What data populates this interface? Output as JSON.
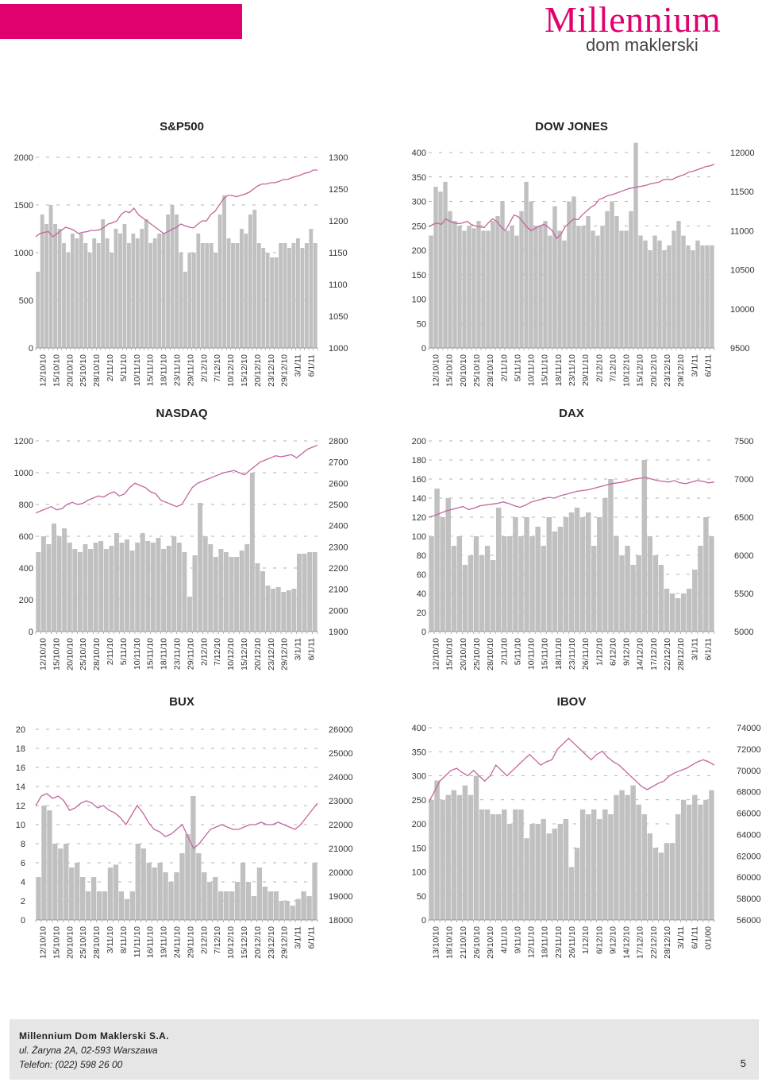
{
  "header": {
    "logo_word": "Millennium",
    "logo_sub": "dom maklerski"
  },
  "colors": {
    "brand": "#e0006e",
    "bar": "#c0c0c0",
    "line": "#c4649a"
  },
  "footer": {
    "company": "Millennium Dom Maklerski S.A.",
    "address": "ul. Żaryna 2A, 02-593 Warszawa",
    "phone": "Telefon: (022) 598 26 00",
    "page": "5"
  },
  "chart_data": [
    {
      "title": "S&P500",
      "type": "bar+line",
      "left_ticks": [
        "0",
        "500",
        "1000",
        "1500",
        "2000"
      ],
      "left_lim": [
        0,
        2000
      ],
      "right_ticks": [
        "1000",
        "1050",
        "1100",
        "1150",
        "1200",
        "1250",
        "1300"
      ],
      "right_lim": [
        1000,
        1300
      ],
      "categories": [
        "12/10/10",
        "15/10/10",
        "20/10/10",
        "25/10/10",
        "28/10/10",
        "2/11/10",
        "5/11/10",
        "10/11/10",
        "15/11/10",
        "18/11/10",
        "23/11/10",
        "29/11/10",
        "2/12/10",
        "7/12/10",
        "10/12/10",
        "15/12/10",
        "20/12/10",
        "23/12/10",
        "29/12/10",
        "3/1/11",
        "6/1/11"
      ],
      "volume": [
        800,
        1400,
        1300,
        1500,
        1300,
        1250,
        1100,
        1000,
        1200,
        1150,
        1200,
        1100,
        1000,
        1150,
        1100,
        1350,
        1150,
        1000,
        1250,
        1200,
        1300,
        1100,
        1200,
        1150,
        1250,
        1350,
        1100,
        1150,
        1200,
        1200,
        1400,
        1500,
        1400,
        1000,
        800,
        1000,
        1000,
        1200,
        1100,
        1100,
        1100,
        1000,
        1400,
        1600,
        1150,
        1100,
        1100,
        1250,
        1200,
        1400,
        1450,
        1100,
        1050,
        1000,
        950,
        950,
        1100,
        1100,
        1050,
        1100,
        1150,
        1050,
        1100,
        1250,
        1100
      ],
      "index": [
        1175,
        1180,
        1182,
        1183,
        1175,
        1180,
        1185,
        1190,
        1188,
        1185,
        1180,
        1182,
        1183,
        1185,
        1185,
        1186,
        1190,
        1195,
        1197,
        1200,
        1210,
        1215,
        1213,
        1220,
        1210,
        1205,
        1200,
        1195,
        1190,
        1185,
        1180,
        1183,
        1187,
        1190,
        1195,
        1192,
        1190,
        1189,
        1195,
        1200,
        1200,
        1210,
        1215,
        1225,
        1235,
        1240,
        1240,
        1238,
        1240,
        1242,
        1245,
        1250,
        1255,
        1258,
        1258,
        1260,
        1260,
        1262,
        1265,
        1265,
        1268,
        1270,
        1272,
        1275,
        1276,
        1280,
        1280
      ]
    },
    {
      "title": "DOW JONES",
      "type": "bar+line",
      "left_ticks": [
        "0",
        "50",
        "100",
        "150",
        "200",
        "250",
        "300",
        "350",
        "400"
      ],
      "left_lim": [
        0,
        400
      ],
      "right_ticks": [
        "9500",
        "10000",
        "10500",
        "11000",
        "11500",
        "12000"
      ],
      "right_lim": [
        9500,
        12000
      ],
      "categories": [
        "12/10/10",
        "15/10/10",
        "20/10/10",
        "25/10/10",
        "28/10/10",
        "2/11/10",
        "5/11/10",
        "10/11/10",
        "15/11/10",
        "18/11/10",
        "23/11/10",
        "29/11/10",
        "2/12/10",
        "7/12/10",
        "10/12/10",
        "15/12/10",
        "20/12/10",
        "23/12/10",
        "29/12/10",
        "3/1/11",
        "6/1/11"
      ],
      "volume": [
        230,
        330,
        320,
        340,
        280,
        260,
        250,
        240,
        250,
        245,
        260,
        240,
        240,
        260,
        270,
        300,
        240,
        250,
        230,
        280,
        340,
        300,
        250,
        250,
        260,
        230,
        290,
        240,
        220,
        300,
        310,
        250,
        250,
        270,
        240,
        230,
        250,
        280,
        300,
        270,
        240,
        240,
        280,
        420,
        230,
        220,
        200,
        230,
        220,
        200,
        210,
        240,
        260,
        230,
        210,
        200,
        220,
        210,
        210,
        210
      ],
      "index": [
        11050,
        11080,
        11100,
        11080,
        11150,
        11120,
        11100,
        11090,
        11100,
        11120,
        11080,
        11060,
        11050,
        11040,
        11100,
        11150,
        11120,
        11050,
        11000,
        11100,
        11200,
        11180,
        11120,
        11050,
        11000,
        11030,
        11060,
        11080,
        11050,
        11000,
        10900,
        10950,
        11050,
        11100,
        11150,
        11140,
        11200,
        11250,
        11300,
        11330,
        11400,
        11420,
        11450,
        11460,
        11480,
        11500,
        11520,
        11540,
        11550,
        11560,
        11570,
        11580,
        11600,
        11610,
        11620,
        11650,
        11660,
        11650,
        11680,
        11700,
        11720,
        11750,
        11760,
        11780,
        11800,
        11820,
        11830,
        11850
      ]
    },
    {
      "title": "NASDAQ",
      "type": "bar+line",
      "left_ticks": [
        "0",
        "200",
        "400",
        "600",
        "800",
        "1000",
        "1200"
      ],
      "left_lim": [
        0,
        1200
      ],
      "right_ticks": [
        "1900",
        "2000",
        "2100",
        "2200",
        "2300",
        "2400",
        "2500",
        "2600",
        "2700",
        "2800"
      ],
      "right_lim": [
        1900,
        2800
      ],
      "categories": [
        "12/10/10",
        "15/10/10",
        "20/10/10",
        "25/10/10",
        "28/10/10",
        "2/11/10",
        "5/11/10",
        "10/11/10",
        "15/11/10",
        "18/11/10",
        "23/11/10",
        "29/11/10",
        "2/12/10",
        "7/12/10",
        "10/12/10",
        "15/12/10",
        "20/12/10",
        "23/12/10",
        "29/12/10",
        "3/1/11",
        "6/1/11"
      ],
      "volume": [
        500,
        600,
        550,
        680,
        600,
        650,
        560,
        520,
        500,
        550,
        520,
        560,
        570,
        520,
        540,
        620,
        560,
        580,
        510,
        560,
        620,
        570,
        560,
        590,
        520,
        540,
        600,
        560,
        500,
        220,
        480,
        810,
        600,
        550,
        470,
        520,
        500,
        470,
        470,
        510,
        550,
        1000,
        430,
        380,
        290,
        270,
        280,
        250,
        260,
        270,
        490,
        490,
        500,
        500
      ],
      "index": [
        2460,
        2470,
        2480,
        2490,
        2475,
        2480,
        2500,
        2510,
        2500,
        2505,
        2520,
        2530,
        2540,
        2535,
        2550,
        2560,
        2540,
        2550,
        2580,
        2600,
        2590,
        2580,
        2560,
        2550,
        2520,
        2510,
        2500,
        2490,
        2500,
        2540,
        2580,
        2600,
        2610,
        2620,
        2630,
        2640,
        2650,
        2655,
        2660,
        2650,
        2640,
        2660,
        2680,
        2700,
        2710,
        2720,
        2730,
        2725,
        2730,
        2735,
        2720,
        2740,
        2760,
        2770,
        2780
      ]
    },
    {
      "title": "DAX",
      "type": "bar+line",
      "left_ticks": [
        "0",
        "20",
        "40",
        "60",
        "80",
        "100",
        "120",
        "140",
        "160",
        "180",
        "200"
      ],
      "left_lim": [
        0,
        200
      ],
      "right_ticks": [
        "5000",
        "5500",
        "6000",
        "6500",
        "7000",
        "7500"
      ],
      "right_lim": [
        5000,
        7500
      ],
      "categories": [
        "12/10/10",
        "15/10/10",
        "20/10/10",
        "25/10/10",
        "28/10/10",
        "2/11/10",
        "5/11/10",
        "10/11/10",
        "15/11/10",
        "18/11/10",
        "23/11/10",
        "26/11/10",
        "1/12/10",
        "6/12/10",
        "9/12/10",
        "14/12/10",
        "17/12/10",
        "22/12/10",
        "28/12/10",
        "3/1/11",
        "6/1/11"
      ],
      "volume": [
        100,
        150,
        120,
        140,
        90,
        100,
        70,
        80,
        100,
        80,
        90,
        75,
        130,
        100,
        100,
        120,
        100,
        120,
        100,
        110,
        90,
        120,
        105,
        110,
        120,
        125,
        130,
        120,
        125,
        90,
        120,
        140,
        160,
        100,
        80,
        90,
        70,
        80,
        180,
        100,
        80,
        70,
        45,
        40,
        35,
        40,
        45,
        65,
        90,
        120,
        100
      ],
      "index": [
        6500,
        6520,
        6550,
        6580,
        6600,
        6620,
        6640,
        6600,
        6620,
        6650,
        6660,
        6670,
        6680,
        6700,
        6680,
        6650,
        6630,
        6660,
        6700,
        6720,
        6740,
        6760,
        6750,
        6780,
        6800,
        6820,
        6840,
        6850,
        6860,
        6880,
        6900,
        6920,
        6940,
        6950,
        6960,
        6980,
        7000,
        7010,
        7020,
        7000,
        6980,
        6970,
        6960,
        6980,
        6950,
        6940,
        6960,
        6980,
        6970,
        6950,
        6960
      ]
    },
    {
      "title": "BUX",
      "type": "bar+line",
      "left_ticks": [
        "0",
        "2",
        "4",
        "6",
        "8",
        "10",
        "12",
        "14",
        "16",
        "18",
        "20"
      ],
      "left_lim": [
        0,
        20
      ],
      "right_ticks": [
        "18000",
        "19000",
        "20000",
        "21000",
        "22000",
        "23000",
        "24000",
        "25000",
        "26000"
      ],
      "right_lim": [
        18000,
        26000
      ],
      "categories": [
        "12/10/10",
        "15/10/10",
        "20/10/10",
        "25/10/10",
        "28/10/10",
        "3/11/10",
        "8/11/10",
        "11/11/10",
        "16/11/10",
        "19/11/10",
        "24/11/10",
        "29/11/10",
        "2/12/10",
        "7/12/10",
        "10/12/10",
        "15/12/10",
        "20/12/10",
        "23/12/10",
        "29/12/10",
        "3/1/11",
        "6/1/11"
      ],
      "volume": [
        4.5,
        12,
        11.5,
        8,
        7.5,
        8,
        5.5,
        6,
        4.5,
        3,
        4.5,
        3,
        3,
        5.5,
        5.8,
        3,
        2.2,
        3,
        8,
        7.5,
        6,
        5.5,
        6,
        5,
        4,
        5,
        7,
        9,
        13,
        7,
        5,
        4,
        4.5,
        3,
        3,
        3,
        4,
        6,
        4,
        2.5,
        5.5,
        3.5,
        3,
        3,
        2,
        2,
        1.5,
        2.2,
        3,
        2.5,
        6
      ],
      "index": [
        22800,
        23200,
        23300,
        23100,
        23200,
        23000,
        22600,
        22700,
        22900,
        23000,
        22900,
        22700,
        22800,
        22600,
        22500,
        22300,
        22000,
        22400,
        22800,
        22500,
        22100,
        21800,
        21700,
        21500,
        21600,
        21800,
        22000,
        21500,
        21000,
        21200,
        21500,
        21800,
        21900,
        22000,
        21900,
        21800,
        21800,
        21900,
        22000,
        22000,
        22100,
        22000,
        22000,
        22100,
        22000,
        21900,
        21800,
        22000,
        22300,
        22600,
        22900
      ]
    },
    {
      "title": "IBOV",
      "type": "bar+line",
      "left_ticks": [
        "0",
        "50",
        "100",
        "150",
        "200",
        "250",
        "300",
        "350",
        "400"
      ],
      "left_lim": [
        0,
        400
      ],
      "right_ticks": [
        "56000",
        "58000",
        "60000",
        "62000",
        "64000",
        "66000",
        "68000",
        "70000",
        "72000",
        "74000"
      ],
      "right_lim": [
        56000,
        74000
      ],
      "categories": [
        "13/10/10",
        "18/10/10",
        "21/10/10",
        "26/10/10",
        "29/10/10",
        "4/11/10",
        "9/11/10",
        "12/11/10",
        "18/11/10",
        "23/11/10",
        "26/11/10",
        "1/12/10",
        "6/12/10",
        "9/12/10",
        "14/12/10",
        "17/12/10",
        "22/12/10",
        "28/12/10",
        "3/1/11",
        "6/1/11",
        "0/1/00"
      ],
      "volume": [
        250,
        290,
        250,
        260,
        270,
        260,
        280,
        260,
        300,
        230,
        230,
        220,
        220,
        230,
        200,
        230,
        230,
        170,
        200,
        200,
        210,
        180,
        190,
        200,
        210,
        110,
        150,
        230,
        220,
        230,
        210,
        230,
        220,
        260,
        270,
        260,
        280,
        240,
        220,
        180,
        150,
        140,
        160,
        160,
        220,
        250,
        240,
        260,
        240,
        250,
        270
      ],
      "index": [
        67000,
        68000,
        69000,
        69500,
        70000,
        70200,
        69800,
        69500,
        70000,
        69500,
        69000,
        69500,
        70500,
        70000,
        69500,
        70000,
        70500,
        71000,
        71500,
        71000,
        70500,
        70800,
        71000,
        72000,
        72500,
        73000,
        72500,
        72000,
        71500,
        71000,
        71500,
        71800,
        71200,
        70800,
        70500,
        70000,
        69500,
        69000,
        68500,
        68200,
        68500,
        68800,
        69000,
        69500,
        69800,
        70000,
        70200,
        70500,
        70800,
        71000,
        70800,
        70500
      ]
    }
  ]
}
